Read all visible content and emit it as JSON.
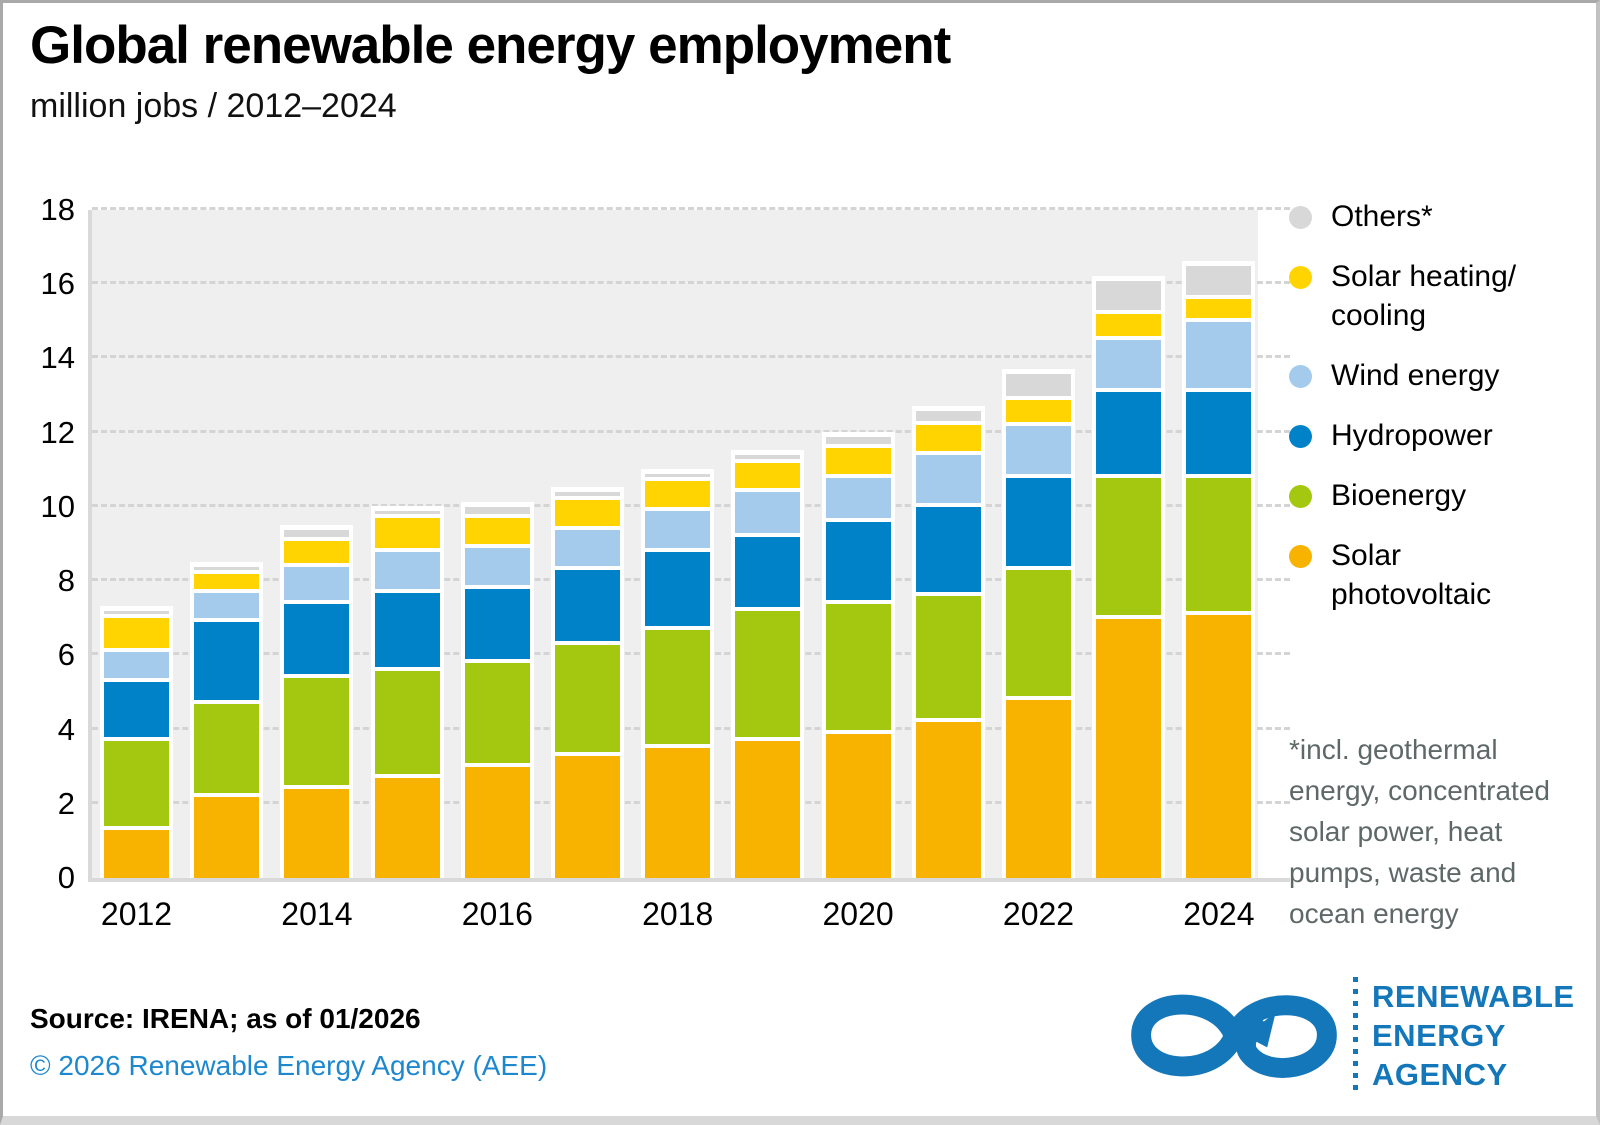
{
  "header": {
    "title": "Global renewable energy employment",
    "subtitle": "million jobs / 2012–2024"
  },
  "chart_data": {
    "type": "bar",
    "stacked": true,
    "title": "Global renewable energy employment",
    "unit": "million jobs",
    "xlabel": "year",
    "ylabel": "million jobs",
    "ylim": [
      0,
      18
    ],
    "ytick_step": 2,
    "grid": "horizontal dashed",
    "legend_position": "right",
    "categories": [
      "2012",
      "2013",
      "2014",
      "2015",
      "2016",
      "2017",
      "2018",
      "2019",
      "2020",
      "2021",
      "2022",
      "2023",
      "2024"
    ],
    "xtick_labels": [
      "2012",
      "2014",
      "2016",
      "2018",
      "2020",
      "2022",
      "2024"
    ],
    "series_order_bottom_to_top": [
      "Solar photovoltaic",
      "Bioenergy",
      "Hydropower",
      "Wind energy",
      "Solar heating/cooling",
      "Others*"
    ],
    "series": [
      {
        "name": "Solar photovoltaic",
        "color": "#F8B200",
        "values": [
          1.4,
          2.3,
          2.5,
          2.8,
          3.1,
          3.4,
          3.6,
          3.8,
          4.0,
          4.3,
          4.9,
          7.1,
          7.2
        ]
      },
      {
        "name": "Bioenergy",
        "color": "#A3C80F",
        "values": [
          2.4,
          2.5,
          3.0,
          2.9,
          2.8,
          3.0,
          3.2,
          3.5,
          3.5,
          3.4,
          3.5,
          3.8,
          3.7
        ]
      },
      {
        "name": "Hydropower",
        "color": "#0082C9",
        "values": [
          1.6,
          2.2,
          2.0,
          2.1,
          2.0,
          2.0,
          2.1,
          2.0,
          2.2,
          2.4,
          2.5,
          2.3,
          2.3
        ]
      },
      {
        "name": "Wind energy",
        "color": "#A4CBEC",
        "values": [
          0.8,
          0.8,
          1.0,
          1.1,
          1.1,
          1.1,
          1.1,
          1.2,
          1.2,
          1.4,
          1.4,
          1.4,
          1.9
        ]
      },
      {
        "name": "Solar heating/cooling",
        "color": "#FFD400",
        "values": [
          0.9,
          0.5,
          0.7,
          0.9,
          0.8,
          0.8,
          0.8,
          0.8,
          0.8,
          0.8,
          0.7,
          0.7,
          0.6
        ]
      },
      {
        "name": "Others*",
        "color": "#D8D8D8",
        "values": [
          0.2,
          0.2,
          0.3,
          0.2,
          0.3,
          0.2,
          0.2,
          0.2,
          0.3,
          0.4,
          0.7,
          0.9,
          0.9
        ]
      }
    ],
    "totals": [
      7.3,
      8.5,
      9.5,
      10.0,
      10.1,
      10.5,
      11.0,
      11.5,
      12.0,
      12.7,
      13.7,
      16.2,
      16.6
    ]
  },
  "legend": {
    "items": [
      {
        "label": "Others*",
        "color": "#D8D8D8"
      },
      {
        "label": "Solar heating/\ncooling",
        "color": "#FFD400"
      },
      {
        "label": "Wind energy",
        "color": "#A4CBEC"
      },
      {
        "label": "Hydropower",
        "color": "#0082C9"
      },
      {
        "label": "Bioenergy",
        "color": "#A3C80F"
      },
      {
        "label": "Solar\nphotovoltaic",
        "color": "#F8B200"
      }
    ]
  },
  "footnote": "*incl. geothermal\nenergy, concentrated\nsolar power, heat\npumps, waste and\nocean energy",
  "footer": {
    "source": "Source: IRENA; as of 01/2026",
    "copyright": "© 2026 Renewable Energy Agency (AEE)",
    "logo_text": "RENEWABLE\nENERGY\nAGENCY",
    "logo_color": "#1477b9"
  }
}
